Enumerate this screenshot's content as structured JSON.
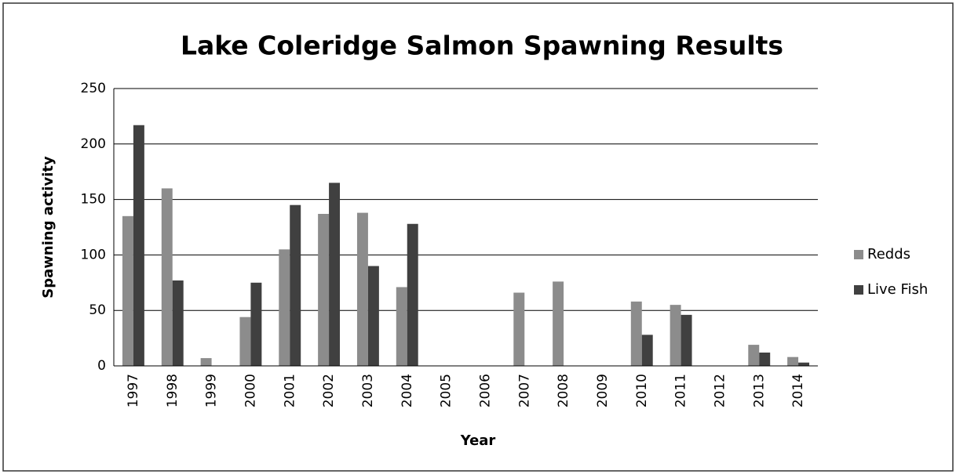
{
  "chart_data": {
    "type": "bar",
    "title": "Lake Coleridge Salmon Spawning Results",
    "x_label": "Year",
    "y_label": "Spawning activity",
    "categories": [
      "1997",
      "1998",
      "1999",
      "2000",
      "2001",
      "2002",
      "2003",
      "2004",
      "2005",
      "2006",
      "2007",
      "2008",
      "2009",
      "2010",
      "2011",
      "2012",
      "2013",
      "2014"
    ],
    "series": [
      {
        "name": "Redds",
        "color": "#8c8c8c",
        "values": [
          135,
          160,
          7,
          44,
          105,
          137,
          138,
          71,
          0,
          0,
          66,
          76,
          0,
          58,
          55,
          0,
          19,
          8
        ]
      },
      {
        "name": "Live Fish",
        "color": "#404040",
        "values": [
          217,
          77,
          0,
          75,
          145,
          165,
          90,
          128,
          0,
          0,
          0,
          0,
          0,
          28,
          46,
          0,
          12,
          3
        ]
      }
    ],
    "ylim": [
      0,
      250
    ],
    "yticks": [
      0,
      50,
      100,
      150,
      200,
      250
    ],
    "grid": true,
    "legend": "right"
  }
}
